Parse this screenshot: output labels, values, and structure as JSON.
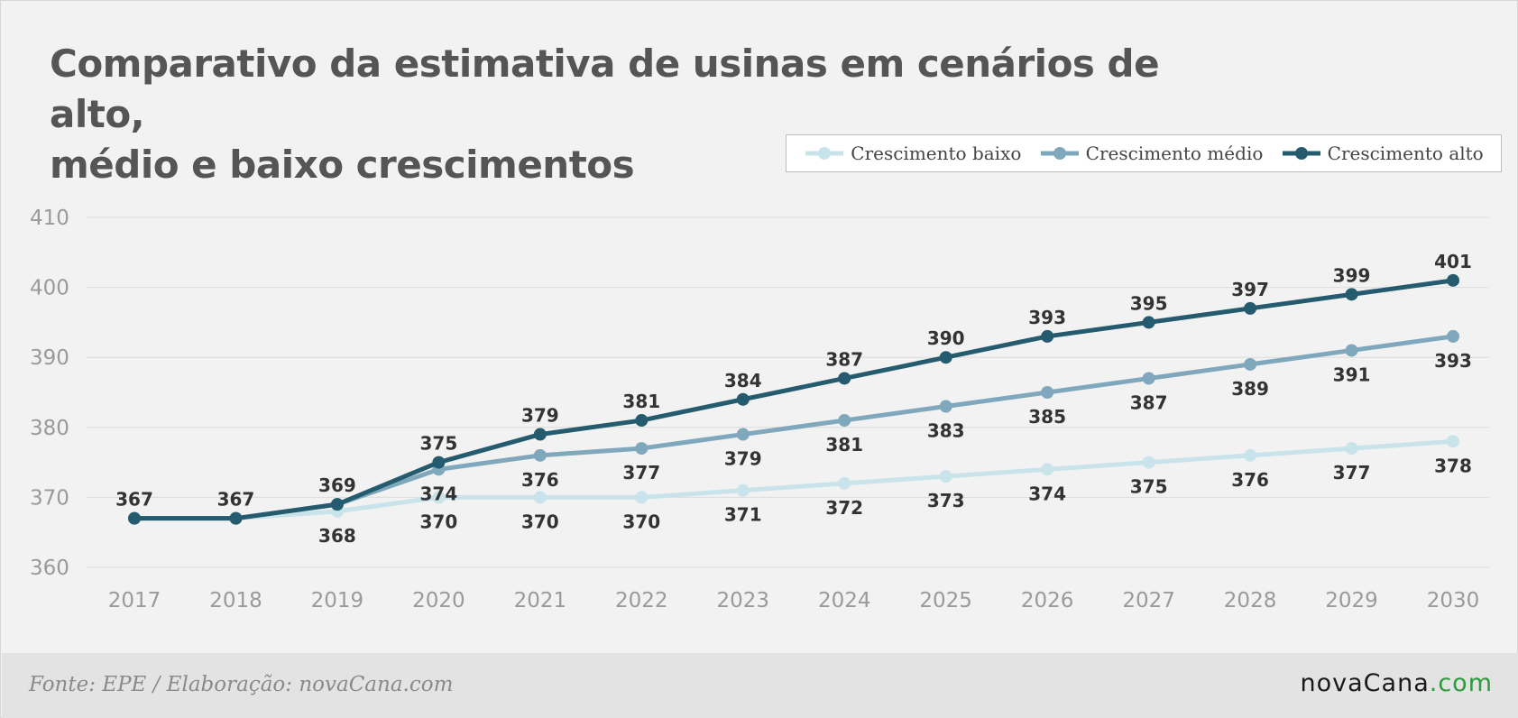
{
  "title": {
    "line1": "Comparativo da estimativa de usinas em cenários de alto,",
    "line2": "médio e baixo crescimentos"
  },
  "footer": {
    "source": "Fonte: EPE / Elaboração: novaCana.com",
    "brand_main": "novaCana",
    "brand_suffix": ".com"
  },
  "colors": {
    "baixo": "#c9e3ea",
    "medio": "#7fa8bd",
    "alto": "#255b6e",
    "brand_accent": "#2e9a3e"
  },
  "chart_data": {
    "type": "line",
    "x": [
      "2017",
      "2018",
      "2019",
      "2020",
      "2021",
      "2022",
      "2023",
      "2024",
      "2025",
      "2026",
      "2027",
      "2028",
      "2029",
      "2030"
    ],
    "ylim": [
      360,
      410
    ],
    "yticks": [
      360,
      370,
      380,
      390,
      400,
      410
    ],
    "grid": true,
    "legend_position": "top-right",
    "series": [
      {
        "key": "baixo",
        "name": "Crescimento baixo",
        "values": [
          367,
          367,
          368,
          370,
          370,
          370,
          371,
          372,
          373,
          374,
          375,
          376,
          377,
          378
        ],
        "label_position": "below"
      },
      {
        "key": "medio",
        "name": "Crescimento médio",
        "values": [
          367,
          367,
          369,
          374,
          376,
          377,
          379,
          381,
          383,
          385,
          387,
          389,
          391,
          393
        ],
        "label_position": "below"
      },
      {
        "key": "alto",
        "name": "Crescimento alto",
        "values": [
          367,
          367,
          369,
          375,
          379,
          381,
          384,
          387,
          390,
          393,
          395,
          397,
          399,
          401
        ],
        "label_position": "above"
      }
    ],
    "labels": {
      "baixo": [
        "",
        "",
        "368",
        "370",
        "370",
        "370",
        "371",
        "372",
        "373",
        "374",
        "375",
        "376",
        "377",
        "378"
      ],
      "medio": [
        "",
        "",
        "",
        "374",
        "376",
        "377",
        "379",
        "381",
        "383",
        "385",
        "387",
        "389",
        "391",
        "393"
      ],
      "alto": [
        "367",
        "367",
        "369",
        "375",
        "379",
        "381",
        "384",
        "387",
        "390",
        "393",
        "395",
        "397",
        "399",
        "401"
      ]
    }
  }
}
